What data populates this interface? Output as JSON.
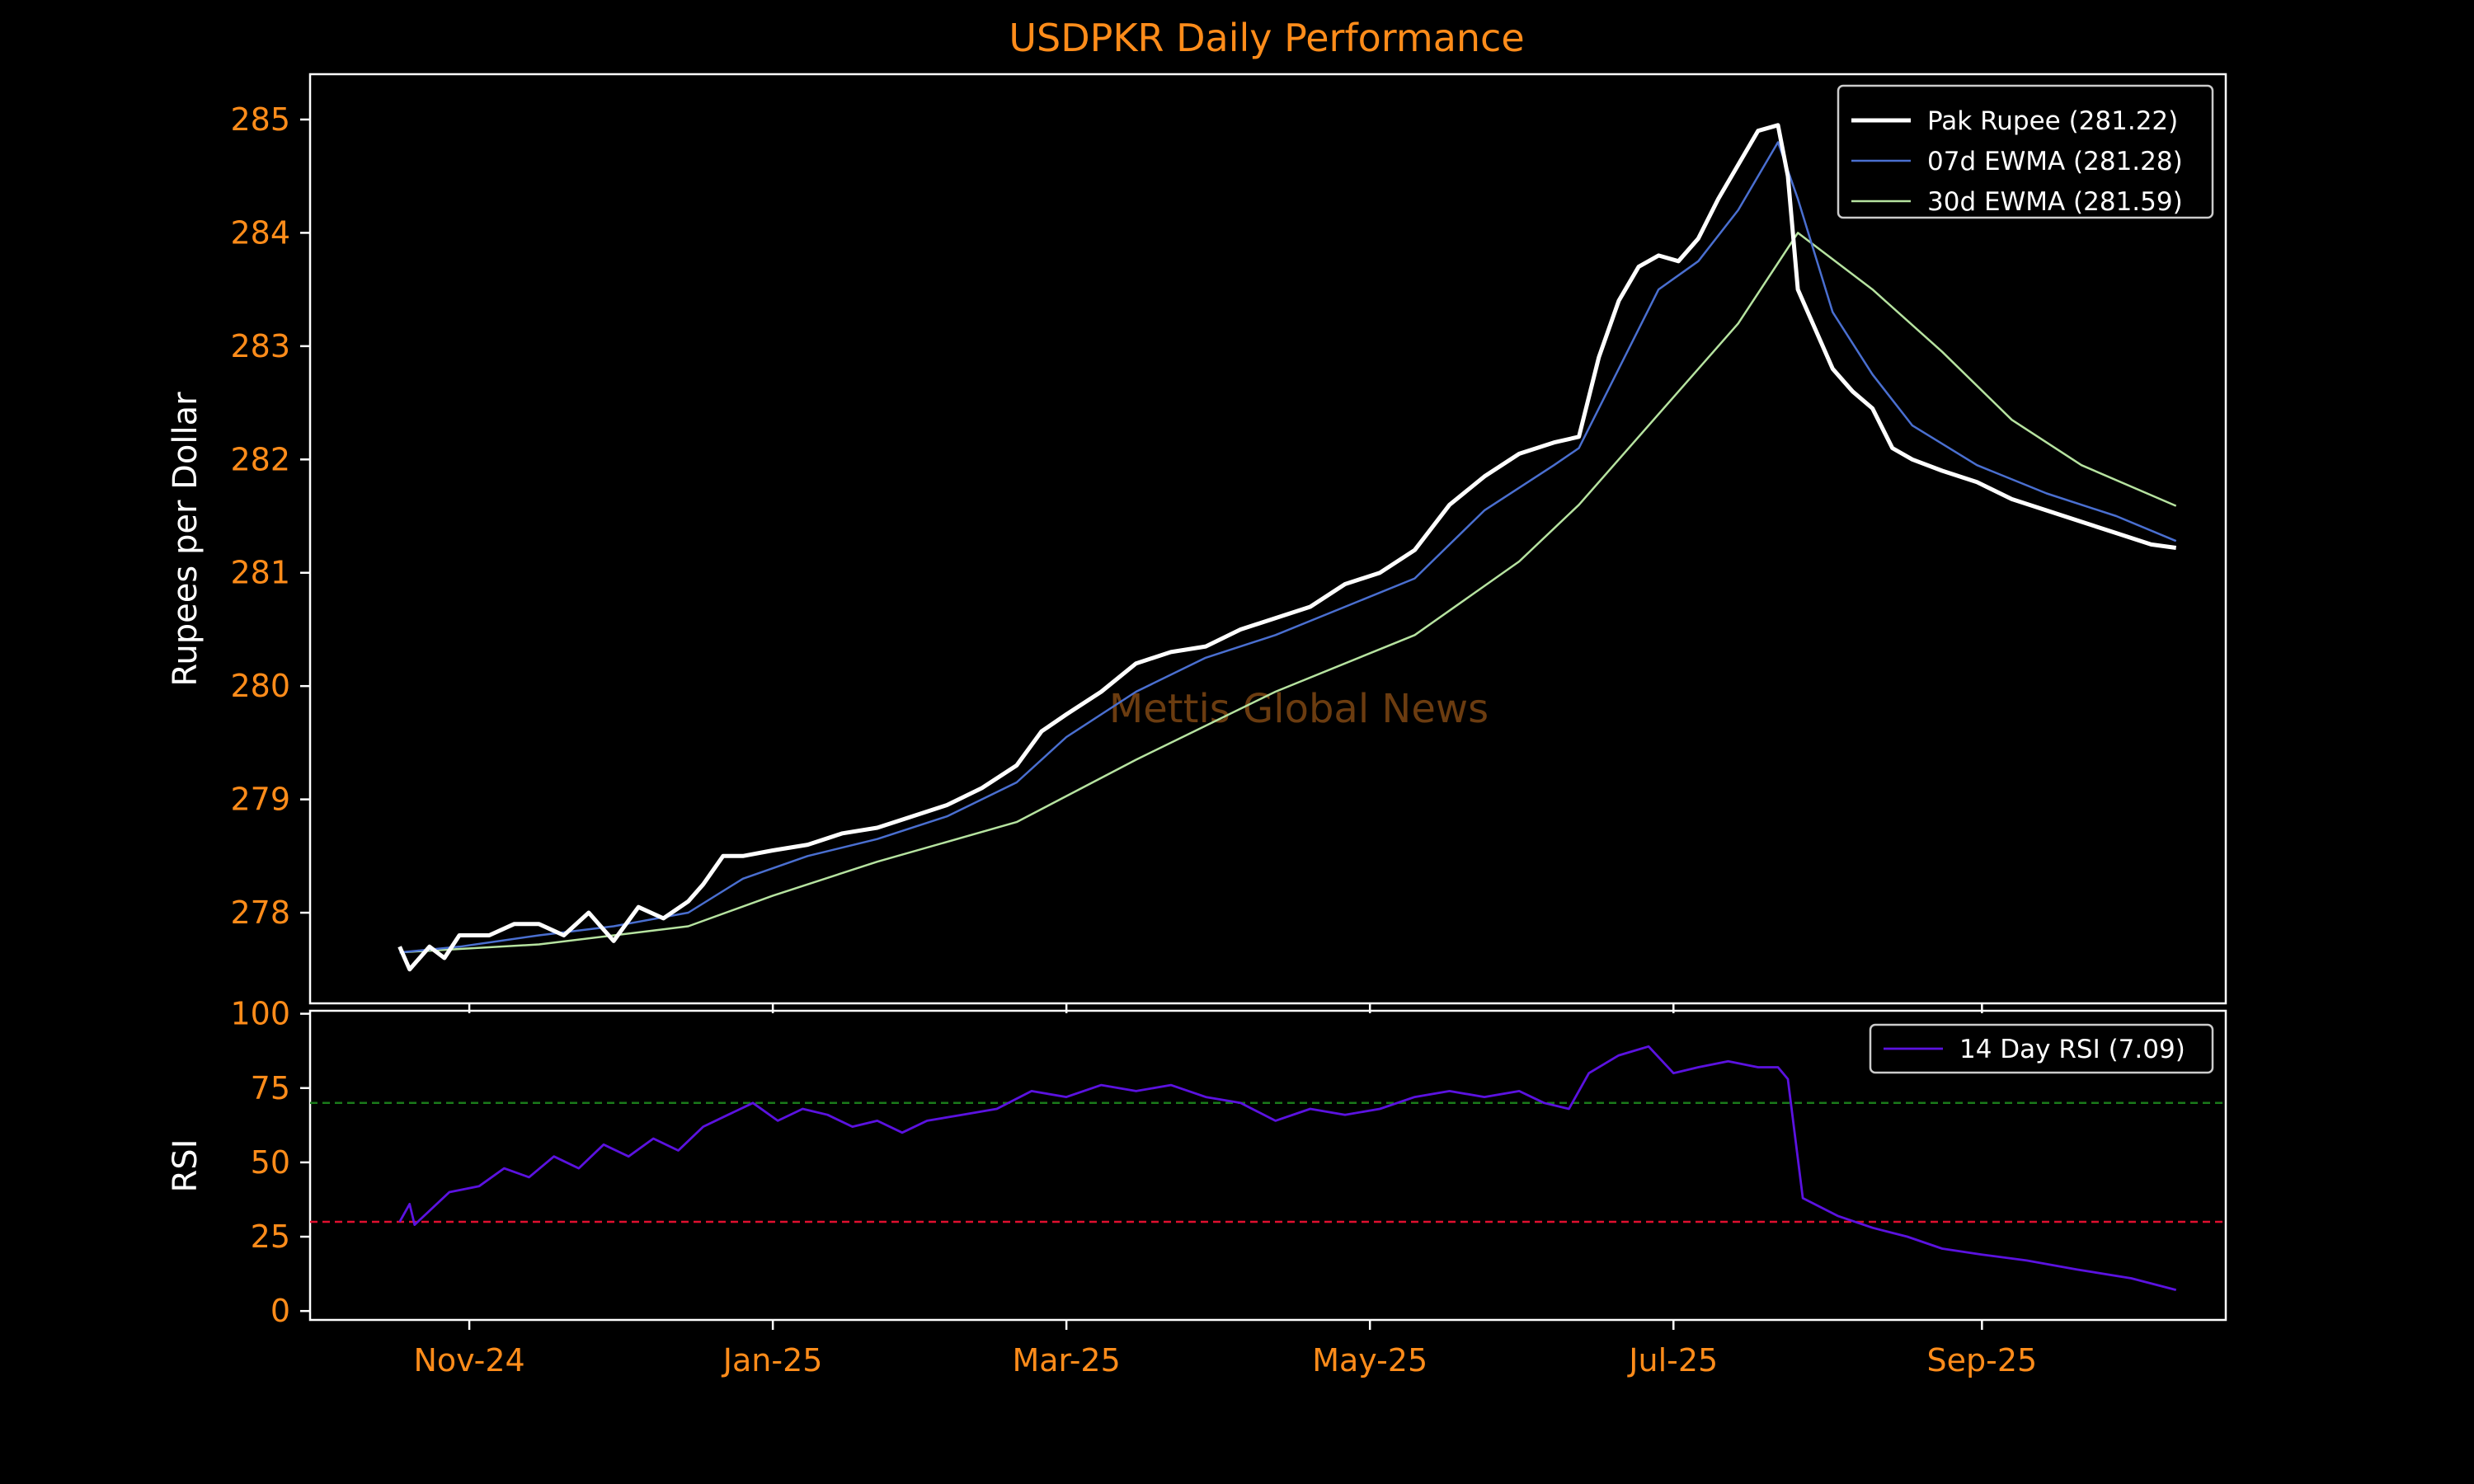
{
  "title": "USDPKR Daily Performance",
  "watermark": "Mettis Global News",
  "colors": {
    "background": "#000000",
    "title": "#ff8c1a",
    "ticks": "#ff8c1a",
    "axis_labels": "#ffffff",
    "pak_rupee": "#ffffff",
    "ewma7": "#4a6fd0",
    "ewma30": "#b6e3a0",
    "rsi": "#5b12e0",
    "overbought": "#1a7a1a",
    "oversold": "#e0102e"
  },
  "chart_data": [
    {
      "type": "line",
      "panel": "price",
      "ylabel": "Rupees per Dollar",
      "ylim": [
        277.2,
        285.4
      ],
      "yticks": [
        278,
        279,
        280,
        281,
        282,
        283,
        284,
        285
      ],
      "xlim": [
        "2024-09-30",
        "2025-10-20"
      ],
      "xticks": [
        {
          "date": "2024-11-01",
          "label": "Nov-24"
        },
        {
          "date": "2025-01-01",
          "label": "Jan-25"
        },
        {
          "date": "2025-03-01",
          "label": "Mar-25"
        },
        {
          "date": "2025-05-01",
          "label": "May-25"
        },
        {
          "date": "2025-07-01",
          "label": "Jul-25"
        },
        {
          "date": "2025-09-01",
          "label": "Sep-25"
        }
      ],
      "legend_position": "top-right",
      "series": [
        {
          "name": "Pak Rupee (281.22)",
          "key": "pak_rupee",
          "points": [
            [
              "2024-10-18",
              277.7
            ],
            [
              "2024-10-20",
              277.5
            ],
            [
              "2024-10-24",
              277.7
            ],
            [
              "2024-10-27",
              277.6
            ],
            [
              "2024-10-30",
              277.8
            ],
            [
              "2024-11-05",
              277.8
            ],
            [
              "2024-11-10",
              277.9
            ],
            [
              "2024-11-15",
              277.9
            ],
            [
              "2024-11-20",
              277.8
            ],
            [
              "2024-11-25",
              278.0
            ],
            [
              "2024-11-30",
              277.75
            ],
            [
              "2024-12-05",
              278.05
            ],
            [
              "2024-12-10",
              277.95
            ],
            [
              "2024-12-15",
              278.1
            ],
            [
              "2024-12-18",
              278.25
            ],
            [
              "2024-12-22",
              278.5
            ],
            [
              "2024-12-26",
              278.5
            ],
            [
              "2025-01-01",
              278.55
            ],
            [
              "2025-01-08",
              278.6
            ],
            [
              "2025-01-15",
              278.7
            ],
            [
              "2025-01-22",
              278.75
            ],
            [
              "2025-01-29",
              278.85
            ],
            [
              "2025-02-05",
              278.95
            ],
            [
              "2025-02-12",
              279.1
            ],
            [
              "2025-02-19",
              279.3
            ],
            [
              "2025-02-24",
              279.6
            ],
            [
              "2025-03-01",
              279.75
            ],
            [
              "2025-03-08",
              279.95
            ],
            [
              "2025-03-15",
              280.2
            ],
            [
              "2025-03-22",
              280.3
            ],
            [
              "2025-03-29",
              280.35
            ],
            [
              "2025-04-05",
              280.5
            ],
            [
              "2025-04-12",
              280.6
            ],
            [
              "2025-04-19",
              280.7
            ],
            [
              "2025-04-26",
              280.9
            ],
            [
              "2025-05-03",
              281.0
            ],
            [
              "2025-05-10",
              281.2
            ],
            [
              "2025-05-17",
              281.6
            ],
            [
              "2025-05-24",
              281.85
            ],
            [
              "2025-05-31",
              282.05
            ],
            [
              "2025-06-07",
              282.15
            ],
            [
              "2025-06-12",
              282.2
            ],
            [
              "2025-06-16",
              282.9
            ],
            [
              "2025-06-20",
              283.4
            ],
            [
              "2025-06-24",
              283.7
            ],
            [
              "2025-06-28",
              283.8
            ],
            [
              "2025-07-02",
              283.75
            ],
            [
              "2025-07-06",
              283.95
            ],
            [
              "2025-07-10",
              284.3
            ],
            [
              "2025-07-14",
              284.6
            ],
            [
              "2025-07-18",
              284.9
            ],
            [
              "2025-07-22",
              284.95
            ],
            [
              "2025-07-24",
              284.5
            ],
            [
              "2025-07-26",
              283.5
            ],
            [
              "2025-07-29",
              283.2
            ],
            [
              "2025-08-02",
              282.8
            ],
            [
              "2025-08-06",
              282.6
            ],
            [
              "2025-08-10",
              282.45
            ],
            [
              "2025-08-14",
              282.1
            ],
            [
              "2025-08-18",
              282.0
            ],
            [
              "2025-08-24",
              281.9
            ],
            [
              "2025-08-31",
              281.8
            ],
            [
              "2025-09-07",
              281.65
            ],
            [
              "2025-09-14",
              281.55
            ],
            [
              "2025-09-21",
              281.45
            ],
            [
              "2025-09-28",
              281.35
            ],
            [
              "2025-10-05",
              281.25
            ],
            [
              "2025-10-10",
              281.22
            ]
          ]
        },
        {
          "name": "07d EWMA (281.28)",
          "key": "ewma7",
          "points": [
            [
              "2024-10-18",
              277.65
            ],
            [
              "2024-10-30",
              277.7
            ],
            [
              "2024-11-15",
              277.8
            ],
            [
              "2024-11-30",
              277.88
            ],
            [
              "2024-12-15",
              278.0
            ],
            [
              "2024-12-26",
              278.3
            ],
            [
              "2025-01-08",
              278.5
            ],
            [
              "2025-01-22",
              278.65
            ],
            [
              "2025-02-05",
              278.85
            ],
            [
              "2025-02-19",
              279.15
            ],
            [
              "2025-03-01",
              279.55
            ],
            [
              "2025-03-15",
              279.95
            ],
            [
              "2025-03-29",
              280.25
            ],
            [
              "2025-04-12",
              280.45
            ],
            [
              "2025-04-26",
              280.7
            ],
            [
              "2025-05-10",
              280.95
            ],
            [
              "2025-05-24",
              281.55
            ],
            [
              "2025-06-07",
              281.95
            ],
            [
              "2025-06-12",
              282.1
            ],
            [
              "2025-06-20",
              282.8
            ],
            [
              "2025-06-28",
              283.5
            ],
            [
              "2025-07-06",
              283.75
            ],
            [
              "2025-07-14",
              284.2
            ],
            [
              "2025-07-22",
              284.8
            ],
            [
              "2025-07-26",
              284.3
            ],
            [
              "2025-08-02",
              283.3
            ],
            [
              "2025-08-10",
              282.75
            ],
            [
              "2025-08-18",
              282.3
            ],
            [
              "2025-08-31",
              281.95
            ],
            [
              "2025-09-14",
              281.7
            ],
            [
              "2025-09-28",
              281.5
            ],
            [
              "2025-10-10",
              281.28
            ]
          ]
        },
        {
          "name": "30d EWMA (281.59)",
          "key": "ewma30",
          "points": [
            [
              "2024-10-18",
              277.65
            ],
            [
              "2024-11-15",
              277.72
            ],
            [
              "2024-12-15",
              277.88
            ],
            [
              "2025-01-01",
              278.15
            ],
            [
              "2025-01-22",
              278.45
            ],
            [
              "2025-02-19",
              278.8
            ],
            [
              "2025-03-15",
              279.35
            ],
            [
              "2025-04-12",
              279.95
            ],
            [
              "2025-05-10",
              280.45
            ],
            [
              "2025-05-31",
              281.1
            ],
            [
              "2025-06-12",
              281.6
            ],
            [
              "2025-06-28",
              282.4
            ],
            [
              "2025-07-14",
              283.2
            ],
            [
              "2025-07-26",
              284.0
            ],
            [
              "2025-08-10",
              283.5
            ],
            [
              "2025-08-24",
              282.95
            ],
            [
              "2025-09-07",
              282.35
            ],
            [
              "2025-09-21",
              281.95
            ],
            [
              "2025-10-10",
              281.59
            ]
          ]
        }
      ]
    },
    {
      "type": "line",
      "panel": "rsi",
      "ylabel": "RSI",
      "ylim": [
        -3,
        101
      ],
      "yticks": [
        0,
        25,
        50,
        75,
        100
      ],
      "xlim": [
        "2024-09-30",
        "2025-10-20"
      ],
      "legend_position": "top-right",
      "reference_lines": [
        {
          "value": 70,
          "key": "overbought"
        },
        {
          "value": 30,
          "key": "oversold"
        }
      ],
      "series": [
        {
          "name": "14 Day RSI (7.09)",
          "key": "rsi",
          "points": [
            [
              "2024-10-18",
              30
            ],
            [
              "2024-10-20",
              36
            ],
            [
              "2024-10-21",
              29
            ],
            [
              "2024-10-28",
              40
            ],
            [
              "2024-11-03",
              42
            ],
            [
              "2024-11-08",
              48
            ],
            [
              "2024-11-13",
              45
            ],
            [
              "2024-11-18",
              52
            ],
            [
              "2024-11-23",
              48
            ],
            [
              "2024-11-28",
              56
            ],
            [
              "2024-12-03",
              52
            ],
            [
              "2024-12-08",
              58
            ],
            [
              "2024-12-13",
              54
            ],
            [
              "2024-12-18",
              62
            ],
            [
              "2024-12-23",
              66
            ],
            [
              "2024-12-28",
              70
            ],
            [
              "2025-01-02",
              64
            ],
            [
              "2025-01-07",
              68
            ],
            [
              "2025-01-12",
              66
            ],
            [
              "2025-01-17",
              62
            ],
            [
              "2025-01-22",
              64
            ],
            [
              "2025-01-27",
              60
            ],
            [
              "2025-02-01",
              64
            ],
            [
              "2025-02-08",
              66
            ],
            [
              "2025-02-15",
              68
            ],
            [
              "2025-02-22",
              74
            ],
            [
              "2025-03-01",
              72
            ],
            [
              "2025-03-08",
              76
            ],
            [
              "2025-03-15",
              74
            ],
            [
              "2025-03-22",
              76
            ],
            [
              "2025-03-29",
              72
            ],
            [
              "2025-04-05",
              70
            ],
            [
              "2025-04-12",
              64
            ],
            [
              "2025-04-19",
              68
            ],
            [
              "2025-04-26",
              66
            ],
            [
              "2025-05-03",
              68
            ],
            [
              "2025-05-10",
              72
            ],
            [
              "2025-05-17",
              74
            ],
            [
              "2025-05-24",
              72
            ],
            [
              "2025-05-31",
              74
            ],
            [
              "2025-06-05",
              70
            ],
            [
              "2025-06-10",
              68
            ],
            [
              "2025-06-14",
              80
            ],
            [
              "2025-06-20",
              86
            ],
            [
              "2025-06-26",
              89
            ],
            [
              "2025-07-01",
              80
            ],
            [
              "2025-07-06",
              82
            ],
            [
              "2025-07-12",
              84
            ],
            [
              "2025-07-18",
              82
            ],
            [
              "2025-07-22",
              82
            ],
            [
              "2025-07-24",
              78
            ],
            [
              "2025-07-27",
              38
            ],
            [
              "2025-08-03",
              32
            ],
            [
              "2025-08-10",
              28
            ],
            [
              "2025-08-17",
              25
            ],
            [
              "2025-08-24",
              21
            ],
            [
              "2025-09-01",
              19
            ],
            [
              "2025-09-10",
              17
            ],
            [
              "2025-09-20",
              14
            ],
            [
              "2025-10-01",
              11
            ],
            [
              "2025-10-10",
              7.09
            ]
          ]
        }
      ]
    }
  ]
}
